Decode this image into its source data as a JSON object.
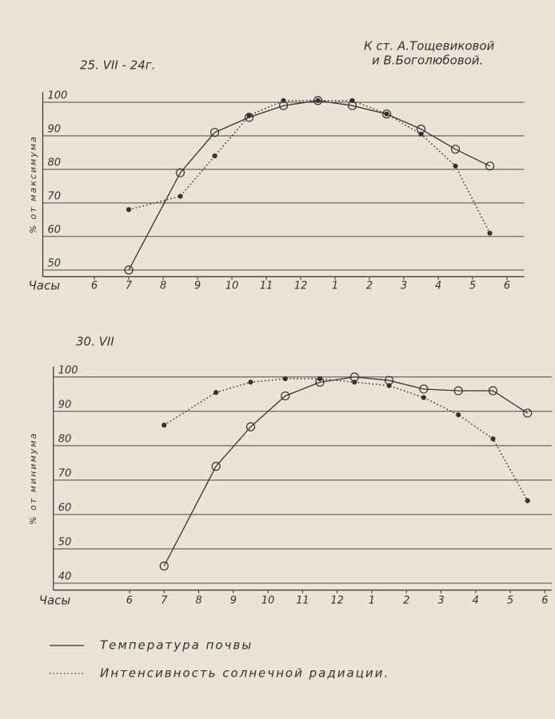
{
  "attribution": [
    "К ст. А.Тощевиковой",
    "и В.Боголюбовой."
  ],
  "chart_data": [
    {
      "type": "line",
      "title": "25. VII - 24г.",
      "ylabel": "% от максимума",
      "xlabel": "Часы",
      "xlim": [
        4.5,
        18.5
      ],
      "ylim": [
        48,
        103
      ],
      "xticks": [
        {
          "value": 6,
          "label": "6"
        },
        7,
        8,
        9,
        10,
        11,
        12,
        {
          "value": 13,
          "label": "1"
        },
        {
          "value": 14,
          "label": "2"
        },
        {
          "value": 15,
          "label": "3"
        },
        {
          "value": 16,
          "label": "4"
        },
        {
          "value": 17,
          "label": "5"
        },
        {
          "value": 18,
          "label": "6"
        }
      ],
      "yticks": [
        50,
        60,
        70,
        80,
        90,
        100
      ],
      "grid": true,
      "x": [
        7,
        8.5,
        9.5,
        10.5,
        11.5,
        12.5,
        13.5,
        14.5,
        15.5,
        16.5,
        17.5
      ],
      "series": [
        {
          "name": "Температура почвы",
          "color": "#333333",
          "style": "solid",
          "values": [
            50,
            79,
            91,
            95.5,
            99,
            100.5,
            99,
            96.5,
            92,
            86,
            81
          ]
        },
        {
          "name": "Интенсивность солнечной радиации.",
          "color": "#333333",
          "style": "dotted",
          "values": [
            68,
            72,
            84,
            96,
            100.5,
            100.5,
            100.5,
            96.5,
            90.5,
            81,
            61
          ]
        }
      ]
    },
    {
      "type": "line",
      "title": "30. VII",
      "ylabel": "% от минимума",
      "xlabel": "Часы",
      "xlim": [
        3.8,
        18.2
      ],
      "ylim": [
        38,
        103
      ],
      "xticks": [
        {
          "value": 6,
          "label": "6"
        },
        7,
        8,
        9,
        10,
        11,
        12,
        {
          "value": 13,
          "label": "1"
        },
        {
          "value": 14,
          "label": "2"
        },
        {
          "value": 15,
          "label": "3"
        },
        {
          "value": 16,
          "label": "4"
        },
        {
          "value": 17,
          "label": "5"
        },
        {
          "value": 18,
          "label": "6"
        }
      ],
      "yticks": [
        40,
        50,
        60,
        70,
        80,
        90,
        100
      ],
      "grid": true,
      "x": [
        7,
        8.5,
        9.5,
        10.5,
        11.5,
        12.5,
        13.5,
        14.5,
        15.5,
        16.5,
        17.5
      ],
      "series": [
        {
          "name": "Температура почвы",
          "color": "#333333",
          "style": "solid",
          "values": [
            45,
            74,
            85.5,
            94.5,
            98.5,
            100,
            99,
            96.5,
            96,
            96,
            89.5
          ]
        },
        {
          "name": "Интенсивность солнечной радиации.",
          "color": "#333333",
          "style": "dotted",
          "values": [
            86,
            95.5,
            98.5,
            99.5,
            99.5,
            98.5,
            97.5,
            94,
            89,
            82,
            64
          ]
        }
      ]
    }
  ]
}
